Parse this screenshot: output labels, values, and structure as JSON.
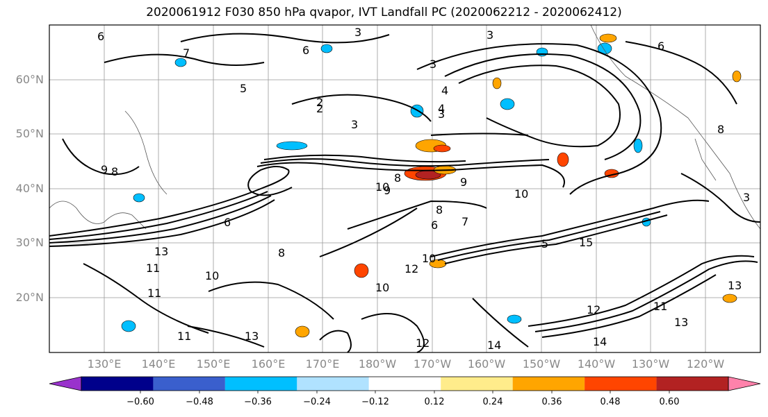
{
  "title": "2020061912 F030 850 hPa qvapor, IVT Landfall PC (2020062212 - 2020062412)",
  "lat_labels": [
    "60°N",
    "50°N",
    "40°N",
    "30°N",
    "20°N"
  ],
  "lon_labels": [
    "130°E",
    "140°E",
    "150°E",
    "160°E",
    "170°E",
    "180°W",
    "170°W",
    "160°W",
    "150°W",
    "140°W",
    "130°W",
    "120°W"
  ],
  "colorbar": {
    "colors": [
      "#9932cc",
      "#00008b",
      "#3a5fcd",
      "#00bfff",
      "#b0e2ff",
      "#ffffff",
      "#ffec8b",
      "#ffa500",
      "#ff4500",
      "#b22222",
      "#ff82ab"
    ],
    "ticks": [
      "−0.60",
      "−0.48",
      "−0.36",
      "−0.24",
      "−0.12",
      "0.12",
      "0.24",
      "0.36",
      "0.48",
      "0.60"
    ]
  },
  "contour_labels": [
    "6",
    "7",
    "6",
    "3",
    "3",
    "6",
    "4",
    "5",
    "2",
    "3",
    "2",
    "4",
    "3",
    "8",
    "9",
    "8",
    "9",
    "10",
    "8",
    "6",
    "6",
    "13",
    "11",
    "11",
    "10",
    "13",
    "11",
    "12",
    "14",
    "12",
    "13",
    "8",
    "5",
    "10",
    "15",
    "10",
    "7",
    "3",
    "8",
    "9",
    "13",
    "11",
    "14",
    "10",
    "12",
    "3"
  ],
  "shading_colors": {
    "positive": "#ffa500",
    "strong_positive": "#ff4500",
    "peak": "#b22222",
    "negative": "#00bfff"
  }
}
